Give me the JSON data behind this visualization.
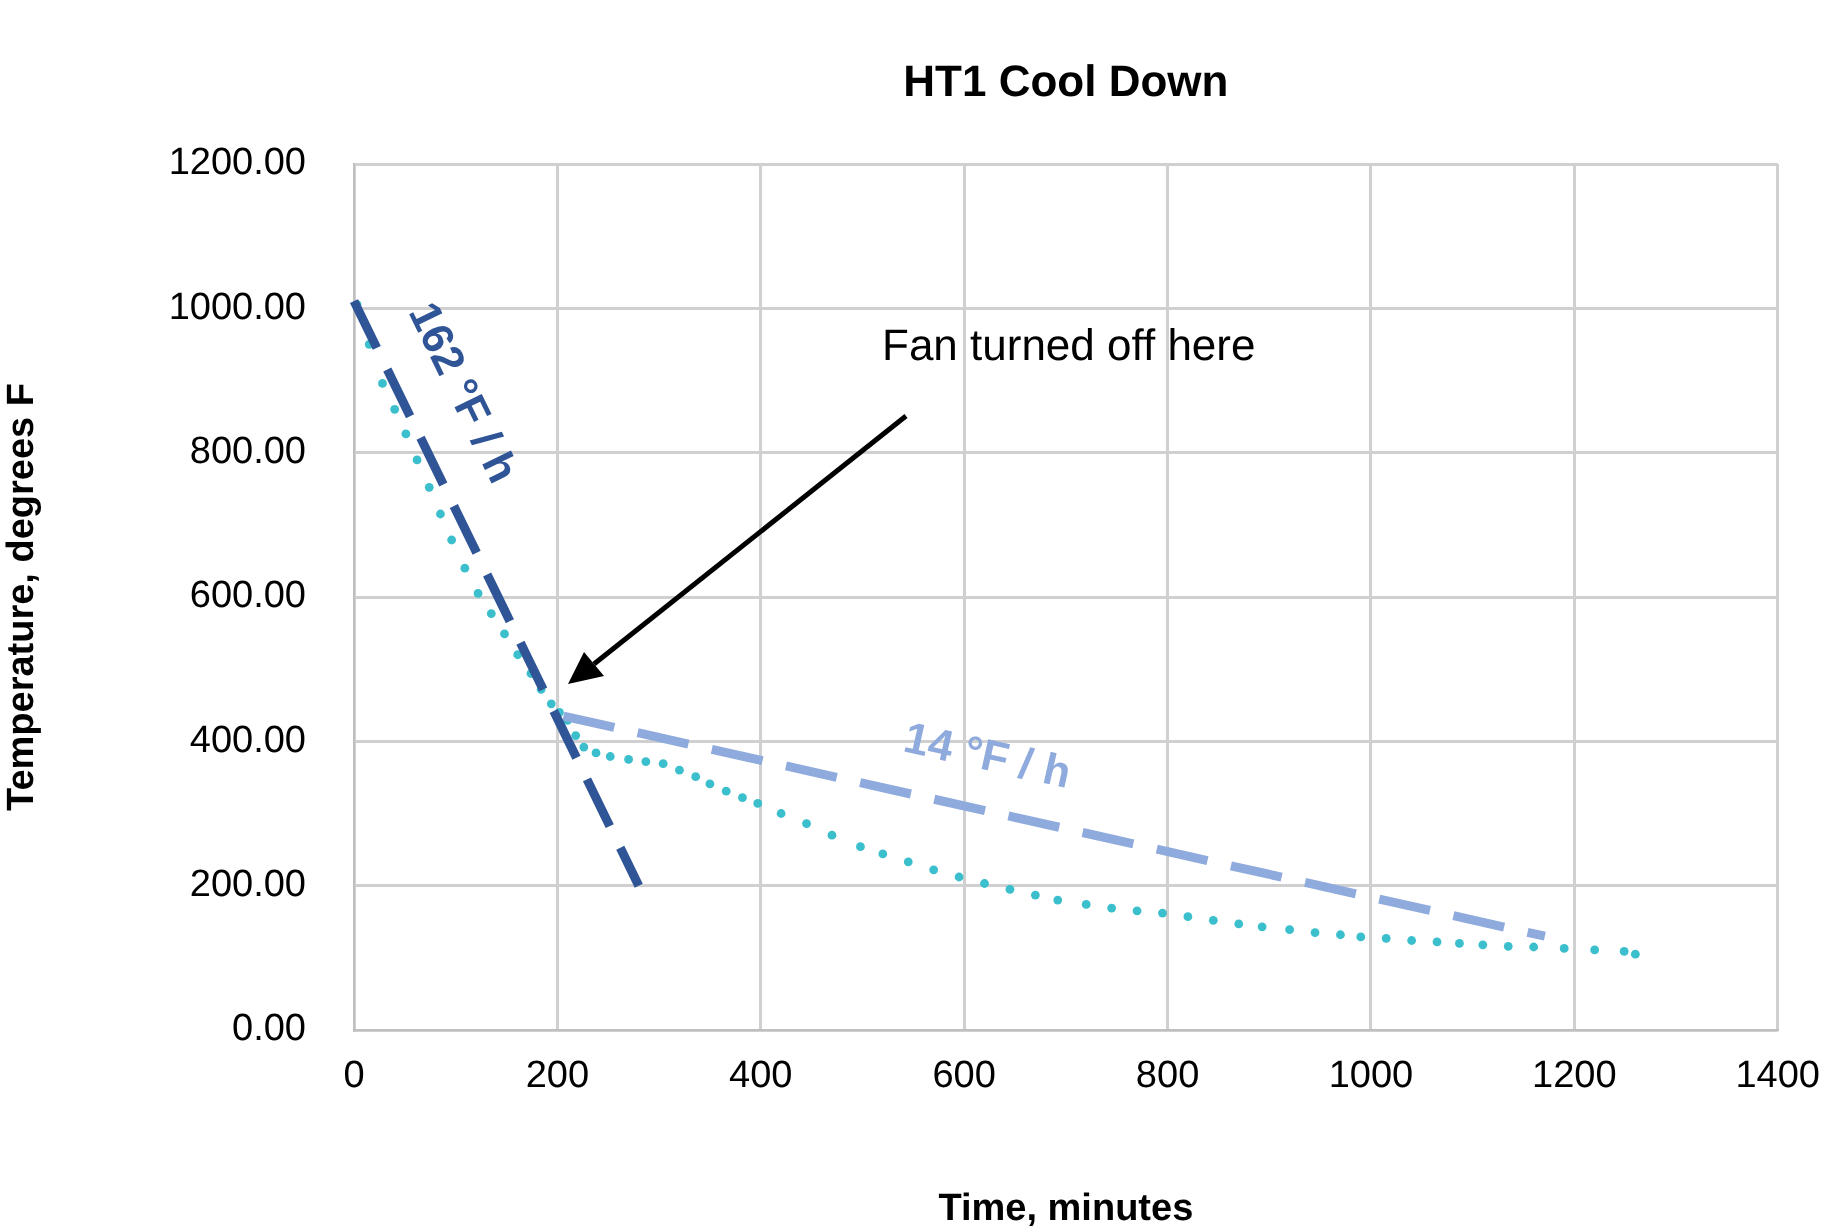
{
  "chart_data": {
    "type": "scatter",
    "title": "HT1 Cool Down",
    "xlabel": "Time, minutes",
    "ylabel": "Temperature, degrees F",
    "xlim": [
      0,
      1400
    ],
    "xticks": [
      0,
      200,
      400,
      600,
      800,
      1000,
      1200,
      1400
    ],
    "ylim": [
      0,
      1200
    ],
    "yticks": [
      {
        "value": 0,
        "label": "0.00"
      },
      {
        "value": 200,
        "label": "200.00"
      },
      {
        "value": 400,
        "label": "400.00"
      },
      {
        "value": 600,
        "label": "600.00"
      },
      {
        "value": 800,
        "label": "800.00"
      },
      {
        "value": 1000,
        "label": "1000.00"
      },
      {
        "value": 1200,
        "label": "1200.00"
      }
    ],
    "grid": true,
    "legend": false,
    "marker": "circle",
    "series": [
      {
        "color": "#3bbfcc",
        "x": [
          3,
          15,
          28,
          40,
          51,
          62,
          74,
          85,
          96,
          109,
          122,
          135,
          148,
          161,
          174,
          184,
          194,
          202,
          210,
          218,
          226,
          238,
          252,
          270,
          287,
          304,
          320,
          336,
          350,
          366,
          382,
          397,
          420,
          445,
          470,
          498,
          520,
          545,
          570,
          595,
          620,
          645,
          670,
          692,
          720,
          745,
          770,
          795,
          820,
          845,
          870,
          893,
          920,
          945,
          970,
          990,
          1015,
          1040,
          1065,
          1087,
          1110,
          1135,
          1160,
          1190,
          1220,
          1249,
          1260
        ],
        "values": [
          1005,
          950,
          896,
          860,
          826,
          790,
          752,
          715,
          679,
          640,
          605,
          577,
          549,
          520,
          494,
          472,
          452,
          440,
          429,
          408,
          392,
          384,
          379,
          375,
          372,
          369,
          360,
          351,
          341,
          331,
          322,
          314,
          300,
          286,
          270,
          254,
          244,
          233,
          222,
          212,
          203,
          195,
          187,
          180,
          174,
          169,
          165,
          162,
          157,
          152,
          147,
          143,
          139,
          135,
          132,
          129,
          127,
          124,
          122,
          120,
          118,
          116,
          115,
          113,
          111,
          109,
          105
        ]
      },
      {
        "type": "line",
        "name": "162 °F / h",
        "color": "#2f5597",
        "line_style": "dashed",
        "marker": "none",
        "x": [
          0,
          280
        ],
        "values": [
          1010,
          200
        ]
      },
      {
        "type": "line",
        "name": "14 °F / h",
        "color": "#8faadc",
        "line_style": "dashed",
        "marker": "none",
        "x": [
          206,
          1171
        ],
        "values": [
          435,
          130
        ]
      }
    ],
    "annotations": [
      "Fan turned off here"
    ]
  }
}
